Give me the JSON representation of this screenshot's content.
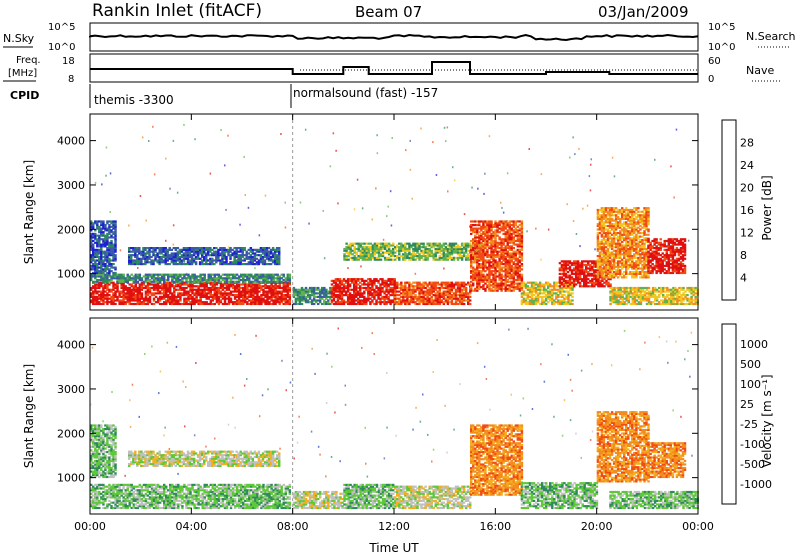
{
  "header": {
    "station": "Rankin Inlet (fitACF)",
    "beam": "Beam 07",
    "date": "03/Jan/2009"
  },
  "status_panels": {
    "nsky_label": "N.Sky",
    "nsearch_label": "N.Search",
    "noise_ticks": [
      "10^5",
      "10^0"
    ],
    "freq_label_line1": "Freq.",
    "freq_label_line2": "[MHz]",
    "freq_ticks": [
      "18",
      "8"
    ],
    "nave_label": "Nave",
    "nave_ticks": [
      "60",
      "0"
    ],
    "cpid_label": "CPID",
    "cpid_modes": [
      {
        "name": "themis -3300",
        "start_hour": 0
      },
      {
        "name": "normalsound (fast) -157",
        "start_hour": 8.0
      }
    ]
  },
  "colors": {
    "power_scale": [
      "#1f1fd8",
      "#3a5aa8",
      "#2e8a5c",
      "#5fb34f",
      "#f2c81e",
      "#f28c1e",
      "#f24a14",
      "#e01010"
    ],
    "velocity_scale": [
      "#e01010",
      "#f24a14",
      "#f28c1e",
      "#f2b01e",
      "#c0c0c0",
      "#5fc83a",
      "#2e8a5c",
      "#3a5aa8",
      "#1f3fc8"
    ]
  },
  "chart_data": [
    {
      "type": "heatmap",
      "panel": "power",
      "xlabel": "",
      "ylabel": "Slant Range [km]",
      "colorbar_label": "Power [dB]",
      "colorbar_ticks": [
        "4",
        "8",
        "12",
        "16",
        "20",
        "24",
        "28"
      ],
      "x_ticks": [
        "00:00",
        "04:00",
        "08:00",
        "12:00",
        "16:00",
        "20:00",
        "00:00"
      ],
      "y_ticks": [
        "1000",
        "2000",
        "3000",
        "4000"
      ],
      "xlim": [
        0,
        24
      ],
      "ylim": [
        180,
        4600
      ],
      "regions": [
        {
          "t0": 0.0,
          "t1": 7.9,
          "r0": 300,
          "r1": 800,
          "level": 28,
          "desc_level": "high"
        },
        {
          "t0": 0.0,
          "t1": 7.9,
          "r0": 800,
          "r1": 1000,
          "level": 10
        },
        {
          "t0": 0.0,
          "t1": 1.0,
          "r0": 1000,
          "r1": 2200,
          "level": 8
        },
        {
          "t0": 1.5,
          "t1": 7.5,
          "r0": 1200,
          "r1": 1600,
          "level": 6
        },
        {
          "t0": 8.0,
          "t1": 9.5,
          "r0": 300,
          "r1": 700,
          "level": 10
        },
        {
          "t0": 9.5,
          "t1": 12.0,
          "r0": 300,
          "r1": 900,
          "level": 26
        },
        {
          "t0": 12.0,
          "t1": 15.0,
          "r0": 300,
          "r1": 800,
          "level": 22
        },
        {
          "t0": 10.0,
          "t1": 15.5,
          "r0": 1300,
          "r1": 1700,
          "level": 12
        },
        {
          "t0": 15.0,
          "t1": 17.0,
          "r0": 600,
          "r1": 2200,
          "level": 22
        },
        {
          "t0": 17.0,
          "t1": 19.0,
          "r0": 300,
          "r1": 800,
          "level": 16
        },
        {
          "t0": 18.5,
          "t1": 20.5,
          "r0": 700,
          "r1": 1300,
          "level": 27
        },
        {
          "t0": 20.0,
          "t1": 22.0,
          "r0": 900,
          "r1": 2500,
          "level": 20
        },
        {
          "t0": 22.0,
          "t1": 23.5,
          "r0": 1000,
          "r1": 1800,
          "level": 26
        },
        {
          "t0": 20.5,
          "t1": 24.0,
          "r0": 300,
          "r1": 700,
          "level": 18
        }
      ]
    },
    {
      "type": "heatmap",
      "panel": "velocity",
      "xlabel": "Time UT",
      "ylabel": "Slant Range [km]",
      "colorbar_label": "Velocity [m s⁻¹]",
      "colorbar_ticks": [
        "-1000",
        "-500",
        "-100",
        "-25",
        "25",
        "100",
        "500",
        "1000"
      ],
      "x_ticks": [
        "00:00",
        "04:00",
        "08:00",
        "12:00",
        "16:00",
        "20:00",
        "00:00"
      ],
      "y_ticks": [
        "1000",
        "2000",
        "3000",
        "4000"
      ],
      "xlim": [
        0,
        24
      ],
      "ylim": [
        180,
        4600
      ],
      "regions": [
        {
          "t0": 0.0,
          "t1": 7.9,
          "r0": 300,
          "r1": 850,
          "vel": 100
        },
        {
          "t0": 0.0,
          "t1": 1.0,
          "r0": 1000,
          "r1": 2200,
          "vel": 80
        },
        {
          "t0": 1.5,
          "t1": 7.5,
          "r0": 1250,
          "r1": 1600,
          "vel": 0
        },
        {
          "t0": 8.0,
          "t1": 10.0,
          "r0": 300,
          "r1": 700,
          "vel": 0
        },
        {
          "t0": 10.0,
          "t1": 12.0,
          "r0": 300,
          "r1": 850,
          "vel": 60
        },
        {
          "t0": 12.0,
          "t1": 15.0,
          "r0": 300,
          "r1": 800,
          "vel": 0
        },
        {
          "t0": 15.0,
          "t1": 17.0,
          "r0": 600,
          "r1": 2200,
          "vel": -300
        },
        {
          "t0": 17.0,
          "t1": 20.0,
          "r0": 300,
          "r1": 900,
          "vel": 50
        },
        {
          "t0": 20.0,
          "t1": 22.0,
          "r0": 900,
          "r1": 2500,
          "vel": -300
        },
        {
          "t0": 22.0,
          "t1": 23.5,
          "r0": 1000,
          "r1": 1800,
          "vel": -200
        },
        {
          "t0": 20.5,
          "t1": 24.0,
          "r0": 300,
          "r1": 700,
          "vel": 100
        }
      ]
    }
  ]
}
